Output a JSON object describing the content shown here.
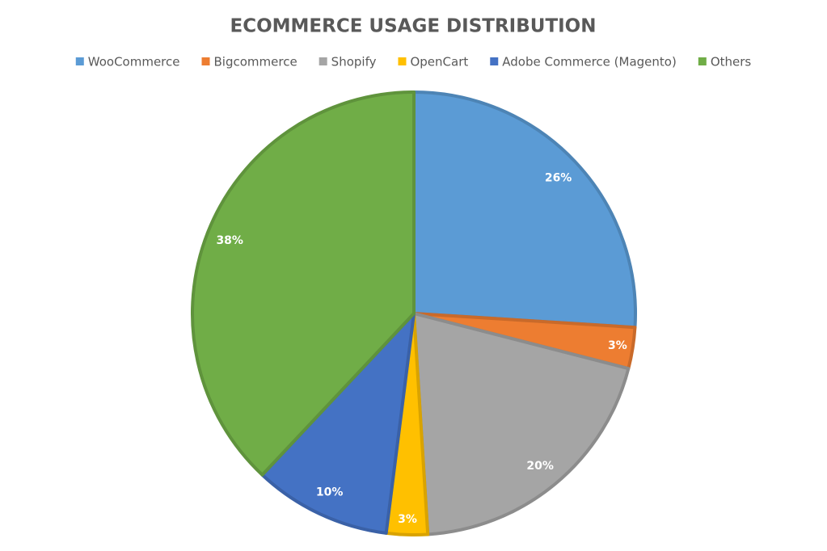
{
  "chart_data": {
    "type": "pie",
    "title": "ECOMMERCE USAGE DISTRIBUTION",
    "categories": [
      "WooCommerce",
      "Bigcommerce",
      "Shopify",
      "OpenCart",
      "Adobe Commerce (Magento)",
      "Others"
    ],
    "values": [
      26,
      3,
      20,
      3,
      10,
      38
    ],
    "value_labels": [
      "26%",
      "3%",
      "20%",
      "3%",
      "10%",
      "38%"
    ],
    "colors": [
      "#5b9bd5",
      "#ed7d31",
      "#a5a5a5",
      "#ffc000",
      "#4472c4",
      "#70ad47"
    ],
    "legend": "top"
  }
}
